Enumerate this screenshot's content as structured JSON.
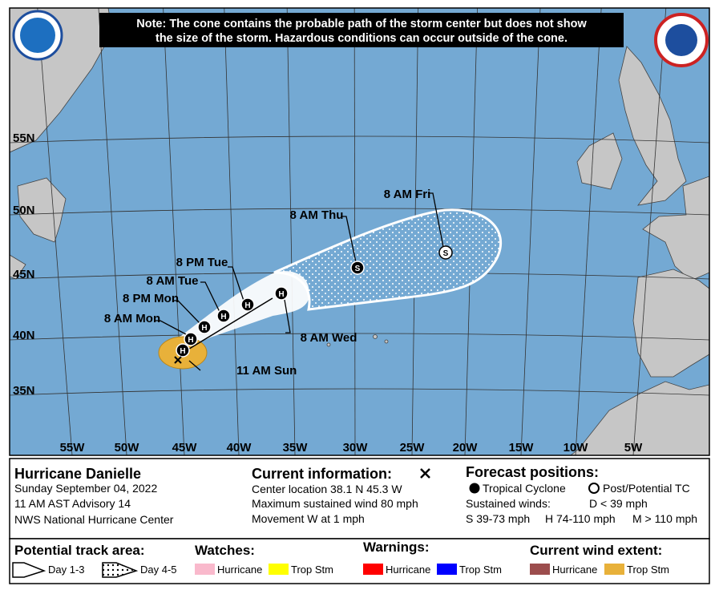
{
  "header": {
    "note_lines": [
      "Note: The cone contains the probable path of the storm center but does not show",
      "the size of the storm. Hazardous conditions can occur outside of the cone."
    ]
  },
  "map": {
    "lat_labels": [
      "55N",
      "50N",
      "45N",
      "40N",
      "35N"
    ],
    "lon_labels": [
      "55W",
      "50W",
      "45W",
      "40W",
      "35W",
      "30W",
      "25W",
      "20W",
      "15W",
      "10W",
      "5W"
    ],
    "points": [
      {
        "label": "11 AM Sun",
        "symbol": "H"
      },
      {
        "label": "8 AM Mon",
        "symbol": "H"
      },
      {
        "label": "8 PM Mon",
        "symbol": "H"
      },
      {
        "label": "8 AM Tue",
        "symbol": "H"
      },
      {
        "label": "8 PM Tue",
        "symbol": "H"
      },
      {
        "label": "8 AM Wed",
        "symbol": "H"
      },
      {
        "label": "8 AM Thu",
        "symbol": "S"
      },
      {
        "label": "8 AM Fri",
        "symbol": "S"
      }
    ]
  },
  "info": {
    "storm": "Hurricane Danielle",
    "date": "Sunday September 04, 2022",
    "advisory": "11 AM AST Advisory 14",
    "center": "NWS National Hurricane Center"
  },
  "current": {
    "title": "Current information:",
    "lines": [
      "Center location 38.1 N 45.3 W",
      "Maximum sustained wind 80 mph",
      "Movement W at 1 mph"
    ]
  },
  "forecast": {
    "title": "Forecast positions:",
    "tropical": "Tropical Cyclone",
    "post": "Post/Potential TC",
    "sustained": "Sustained winds:",
    "d": "D < 39 mph",
    "s": "S 39-73 mph",
    "h": "H 74-110 mph",
    "m": "M > 110 mph"
  },
  "legend": {
    "track_title": "Potential track area:",
    "day13": "Day 1-3",
    "day45": "Day 4-5",
    "watches_title": "Watches:",
    "watch_items": [
      "Hurricane",
      "Trop Stm"
    ],
    "warnings_title": "Warnings:",
    "warning_items": [
      "Hurricane",
      "Trop Stm"
    ],
    "wind_title": "Current wind extent:",
    "wind_items": [
      "Hurricane",
      "Trop Stm"
    ]
  }
}
